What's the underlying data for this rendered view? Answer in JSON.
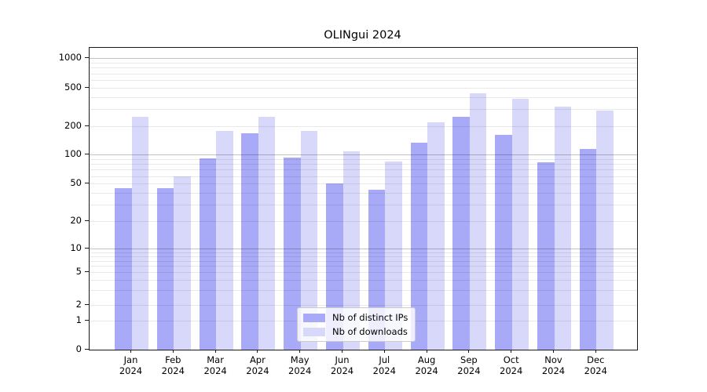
{
  "chart_data": {
    "type": "bar",
    "title": "OLINgui 2024",
    "year_label": "2024",
    "months": [
      "Jan",
      "Feb",
      "Mar",
      "Apr",
      "May",
      "Jun",
      "Jul",
      "Aug",
      "Sep",
      "Oct",
      "Nov",
      "Dec"
    ],
    "categories": [
      "Jan 2024",
      "Feb 2024",
      "Mar 2024",
      "Apr 2024",
      "May 2024",
      "Jun 2024",
      "Jul 2024",
      "Aug 2024",
      "Sep 2024",
      "Oct 2024",
      "Nov 2024",
      "Dec 2024"
    ],
    "series": [
      {
        "name": "Nb of distinct IPs",
        "color": "#a8aaf7",
        "values": [
          45,
          45,
          92,
          168,
          94,
          50,
          43,
          134,
          248,
          162,
          84,
          114
        ]
      },
      {
        "name": "Nb of downloads",
        "color": "#d8d9fa",
        "values": [
          251,
          60,
          178,
          250,
          179,
          109,
          85,
          220,
          437,
          386,
          320,
          288
        ]
      }
    ],
    "y_ticks": [
      0,
      1,
      2,
      5,
      10,
      20,
      50,
      100,
      200,
      500,
      1000
    ],
    "y_scale": "symlog",
    "xlabel": "",
    "ylabel": "",
    "grid": true,
    "legend_position": "lower center"
  }
}
